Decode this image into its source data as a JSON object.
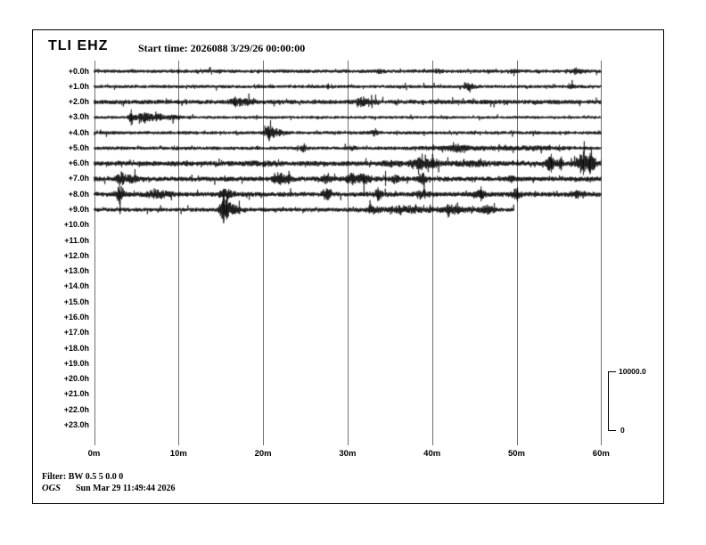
{
  "header": {
    "station": "TLI EHZ",
    "start_time": "Start time: 2026088  3/29/26 00:00:00"
  },
  "footer": {
    "filter": "Filter: BW 0.5 5 0.0 0",
    "org": "OGS",
    "timestamp": "Sun Mar 29 11:49:44 2026"
  },
  "scale_bar": {
    "max_label": "10000.0",
    "min_label": "0"
  },
  "colors": {
    "trace": "#000000",
    "grid": "#707070",
    "text": "#000000",
    "background": "#ffffff"
  },
  "chart_data": {
    "type": "line",
    "subtype": "helicorder-seismogram",
    "title": "TLI EHZ",
    "x_unit": "minutes",
    "x_range": [
      0,
      60
    ],
    "x_ticks": [
      "0m",
      "10m",
      "20m",
      "30m",
      "40m",
      "50m",
      "60m"
    ],
    "grid": "vertical-only",
    "amplitude_scale": {
      "max": 10000.0,
      "min": 0
    },
    "rows": [
      {
        "label": "+0.0h",
        "active": true,
        "start": 0,
        "end": 60,
        "base_amp": 1.6,
        "events": [
          {
            "t": 33.8,
            "amp": 1.0,
            "w": 0.6
          },
          {
            "t": 41.0,
            "amp": 0.8,
            "w": 0.5
          },
          {
            "t": 49.5,
            "amp": 0.8,
            "w": 0.5
          },
          {
            "t": 57.0,
            "amp": 1.2,
            "w": 0.9
          }
        ],
        "spikes": []
      },
      {
        "label": "+1.0h",
        "active": true,
        "start": 0,
        "end": 60,
        "base_amp": 1.5,
        "events": [
          {
            "t": 27.7,
            "amp": 1.5,
            "w": 0.15
          },
          {
            "t": 44.3,
            "amp": 2.5,
            "w": 0.7
          },
          {
            "t": 56.5,
            "amp": 1.0,
            "w": 0.4
          }
        ],
        "spikes": [
          {
            "t": 27.7,
            "up": 3,
            "down": 3
          }
        ]
      },
      {
        "label": "+2.0h",
        "active": true,
        "start": 0,
        "end": 60,
        "base_amp": 2.0,
        "events": [
          {
            "t": 16.8,
            "amp": 3.5,
            "w": 0.7
          },
          {
            "t": 18.2,
            "amp": 2.2,
            "w": 0.5
          },
          {
            "t": 31.8,
            "amp": 3.2,
            "w": 0.7
          },
          {
            "t": 33.0,
            "amp": 1.5,
            "w": 0.4
          }
        ],
        "spikes": [
          {
            "t": 16.6,
            "up": 5,
            "down": 4
          }
        ]
      },
      {
        "label": "+3.0h",
        "active": true,
        "start": 0,
        "end": 60,
        "base_amp": 1.3,
        "events": [
          {
            "t": 4.5,
            "amp": 5.0,
            "w": 0.35
          },
          {
            "t": 5.8,
            "amp": 3.5,
            "w": 0.9
          },
          {
            "t": 7.5,
            "amp": 2.5,
            "w": 1.0
          },
          {
            "t": 9.5,
            "amp": 1.5,
            "w": 0.8
          }
        ],
        "spikes": [
          {
            "t": 4.4,
            "up": 9,
            "down": 9
          }
        ]
      },
      {
        "label": "+4.0h",
        "active": true,
        "start": 0,
        "end": 60,
        "base_amp": 1.5,
        "events": [
          {
            "t": 20.7,
            "amp": 5.5,
            "w": 0.45
          },
          {
            "t": 21.5,
            "amp": 3.0,
            "w": 0.8
          },
          {
            "t": 33.2,
            "amp": 2.2,
            "w": 0.45
          }
        ],
        "spikes": [
          {
            "t": 20.7,
            "up": 7,
            "down": 6
          }
        ]
      },
      {
        "label": "+5.0h",
        "active": true,
        "start": 0,
        "end": 60,
        "base_amp": 1.6,
        "events": [
          {
            "t": 24.8,
            "amp": 2.5,
            "w": 0.4
          },
          {
            "t": 30.5,
            "amp": 1.2,
            "w": 0.5
          },
          {
            "t": 43.0,
            "amp": 2.0,
            "w": 0.8
          },
          {
            "t": 44.0,
            "amp": 1.0,
            "w": 5.0
          },
          {
            "t": 52.0,
            "amp": 0.8,
            "w": 4.0
          }
        ],
        "spikes": []
      },
      {
        "label": "+6.0h",
        "active": true,
        "start": 0,
        "end": 60,
        "base_amp": 2.3,
        "events": [
          {
            "t": 20.0,
            "amp": 0.8,
            "w": 2.0
          },
          {
            "t": 35.0,
            "amp": 1.5,
            "w": 1.0
          },
          {
            "t": 38.7,
            "amp": 4.0,
            "w": 1.1
          },
          {
            "t": 40.2,
            "amp": 2.5,
            "w": 0.7
          },
          {
            "t": 45.0,
            "amp": 1.2,
            "w": 2.0
          },
          {
            "t": 54.0,
            "amp": 5.0,
            "w": 0.5
          },
          {
            "t": 55.2,
            "amp": 3.5,
            "w": 0.35
          },
          {
            "t": 57.8,
            "amp": 8.0,
            "w": 0.7
          },
          {
            "t": 58.9,
            "amp": 6.0,
            "w": 0.5
          }
        ],
        "spikes": [
          {
            "t": 54.1,
            "up": 11,
            "down": 10
          },
          {
            "t": 55.3,
            "up": 8,
            "down": 8
          },
          {
            "t": 57.9,
            "up": 14,
            "down": 13
          },
          {
            "t": 58.7,
            "up": 12,
            "down": 12
          }
        ]
      },
      {
        "label": "+7.0h",
        "active": true,
        "start": 0,
        "end": 60,
        "base_amp": 2.2,
        "events": [
          {
            "t": 3.2,
            "amp": 4.5,
            "w": 0.6
          },
          {
            "t": 4.5,
            "amp": 2.5,
            "w": 0.6
          },
          {
            "t": 21.9,
            "amp": 5.0,
            "w": 0.6
          },
          {
            "t": 23.0,
            "amp": 3.0,
            "w": 0.5
          },
          {
            "t": 27.6,
            "amp": 3.5,
            "w": 0.5
          },
          {
            "t": 30.5,
            "amp": 3.5,
            "w": 0.6
          },
          {
            "t": 32.0,
            "amp": 4.0,
            "w": 0.8
          },
          {
            "t": 35.6,
            "amp": 3.0,
            "w": 0.4
          },
          {
            "t": 38.8,
            "amp": 4.0,
            "w": 0.5
          },
          {
            "t": 49.3,
            "amp": 2.0,
            "w": 0.4
          }
        ],
        "spikes": [
          {
            "t": 34.5,
            "up": 9,
            "down": 8
          },
          {
            "t": 31.9,
            "up": 6,
            "down": 5
          }
        ]
      },
      {
        "label": "+8.0h",
        "active": true,
        "start": 0,
        "end": 60,
        "base_amp": 2.2,
        "events": [
          {
            "t": 3.1,
            "amp": 6.0,
            "w": 0.5
          },
          {
            "t": 7.5,
            "amp": 2.5,
            "w": 1.5
          },
          {
            "t": 15.6,
            "amp": 4.5,
            "w": 0.6
          },
          {
            "t": 27.6,
            "amp": 4.0,
            "w": 0.5
          },
          {
            "t": 33.6,
            "amp": 4.0,
            "w": 0.4
          },
          {
            "t": 38.8,
            "amp": 3.0,
            "w": 0.8
          },
          {
            "t": 45.7,
            "amp": 3.5,
            "w": 0.5
          },
          {
            "t": 49.9,
            "amp": 3.5,
            "w": 0.5
          },
          {
            "t": 57.0,
            "amp": 2.0,
            "w": 0.8
          }
        ],
        "spikes": [
          {
            "t": 3.0,
            "up": 12,
            "down": 11
          },
          {
            "t": 27.5,
            "up": 7,
            "down": 6
          },
          {
            "t": 33.6,
            "up": 8,
            "down": 8
          },
          {
            "t": 45.8,
            "up": 9,
            "down": 8
          },
          {
            "t": 50.1,
            "up": 8,
            "down": 8
          }
        ]
      },
      {
        "label": "+9.0h",
        "active": true,
        "start": 0,
        "end": 49.7,
        "base_amp": 1.8,
        "events": [
          {
            "t": 15.3,
            "amp": 9.0,
            "w": 0.4
          },
          {
            "t": 15.9,
            "amp": 5.0,
            "w": 0.6
          },
          {
            "t": 17.0,
            "amp": 2.5,
            "w": 0.8
          },
          {
            "t": 33.0,
            "amp": 2.5,
            "w": 0.7
          },
          {
            "t": 36.5,
            "amp": 2.0,
            "w": 1.5
          },
          {
            "t": 40.0,
            "amp": 1.2,
            "w": 6.0
          },
          {
            "t": 42.5,
            "amp": 2.8,
            "w": 0.8
          },
          {
            "t": 46.5,
            "amp": 2.8,
            "w": 0.8
          }
        ],
        "spikes": [
          {
            "t": 15.35,
            "up": 14,
            "down": 13
          },
          {
            "t": 15.7,
            "up": 10,
            "down": 11
          }
        ]
      },
      {
        "label": "+10.0h",
        "active": false,
        "start": 0,
        "end": 0,
        "base_amp": 0,
        "events": [],
        "spikes": []
      },
      {
        "label": "+11.0h",
        "active": false,
        "start": 0,
        "end": 0,
        "base_amp": 0,
        "events": [],
        "spikes": []
      },
      {
        "label": "+12.0h",
        "active": false,
        "start": 0,
        "end": 0,
        "base_amp": 0,
        "events": [],
        "spikes": []
      },
      {
        "label": "+13.0h",
        "active": false,
        "start": 0,
        "end": 0,
        "base_amp": 0,
        "events": [],
        "spikes": []
      },
      {
        "label": "+14.0h",
        "active": false,
        "start": 0,
        "end": 0,
        "base_amp": 0,
        "events": [],
        "spikes": []
      },
      {
        "label": "+15.0h",
        "active": false,
        "start": 0,
        "end": 0,
        "base_amp": 0,
        "events": [],
        "spikes": []
      },
      {
        "label": "+16.0h",
        "active": false,
        "start": 0,
        "end": 0,
        "base_amp": 0,
        "events": [],
        "spikes": []
      },
      {
        "label": "+17.0h",
        "active": false,
        "start": 0,
        "end": 0,
        "base_amp": 0,
        "events": [],
        "spikes": []
      },
      {
        "label": "+18.0h",
        "active": false,
        "start": 0,
        "end": 0,
        "base_amp": 0,
        "events": [],
        "spikes": []
      },
      {
        "label": "+19.0h",
        "active": false,
        "start": 0,
        "end": 0,
        "base_amp": 0,
        "events": [],
        "spikes": []
      },
      {
        "label": "+20.0h",
        "active": false,
        "start": 0,
        "end": 0,
        "base_amp": 0,
        "events": [],
        "spikes": []
      },
      {
        "label": "+21.0h",
        "active": false,
        "start": 0,
        "end": 0,
        "base_amp": 0,
        "events": [],
        "spikes": []
      },
      {
        "label": "+22.0h",
        "active": false,
        "start": 0,
        "end": 0,
        "base_amp": 0,
        "events": [],
        "spikes": []
      },
      {
        "label": "+23.0h",
        "active": false,
        "start": 0,
        "end": 0,
        "base_amp": 0,
        "events": [],
        "spikes": []
      }
    ]
  }
}
